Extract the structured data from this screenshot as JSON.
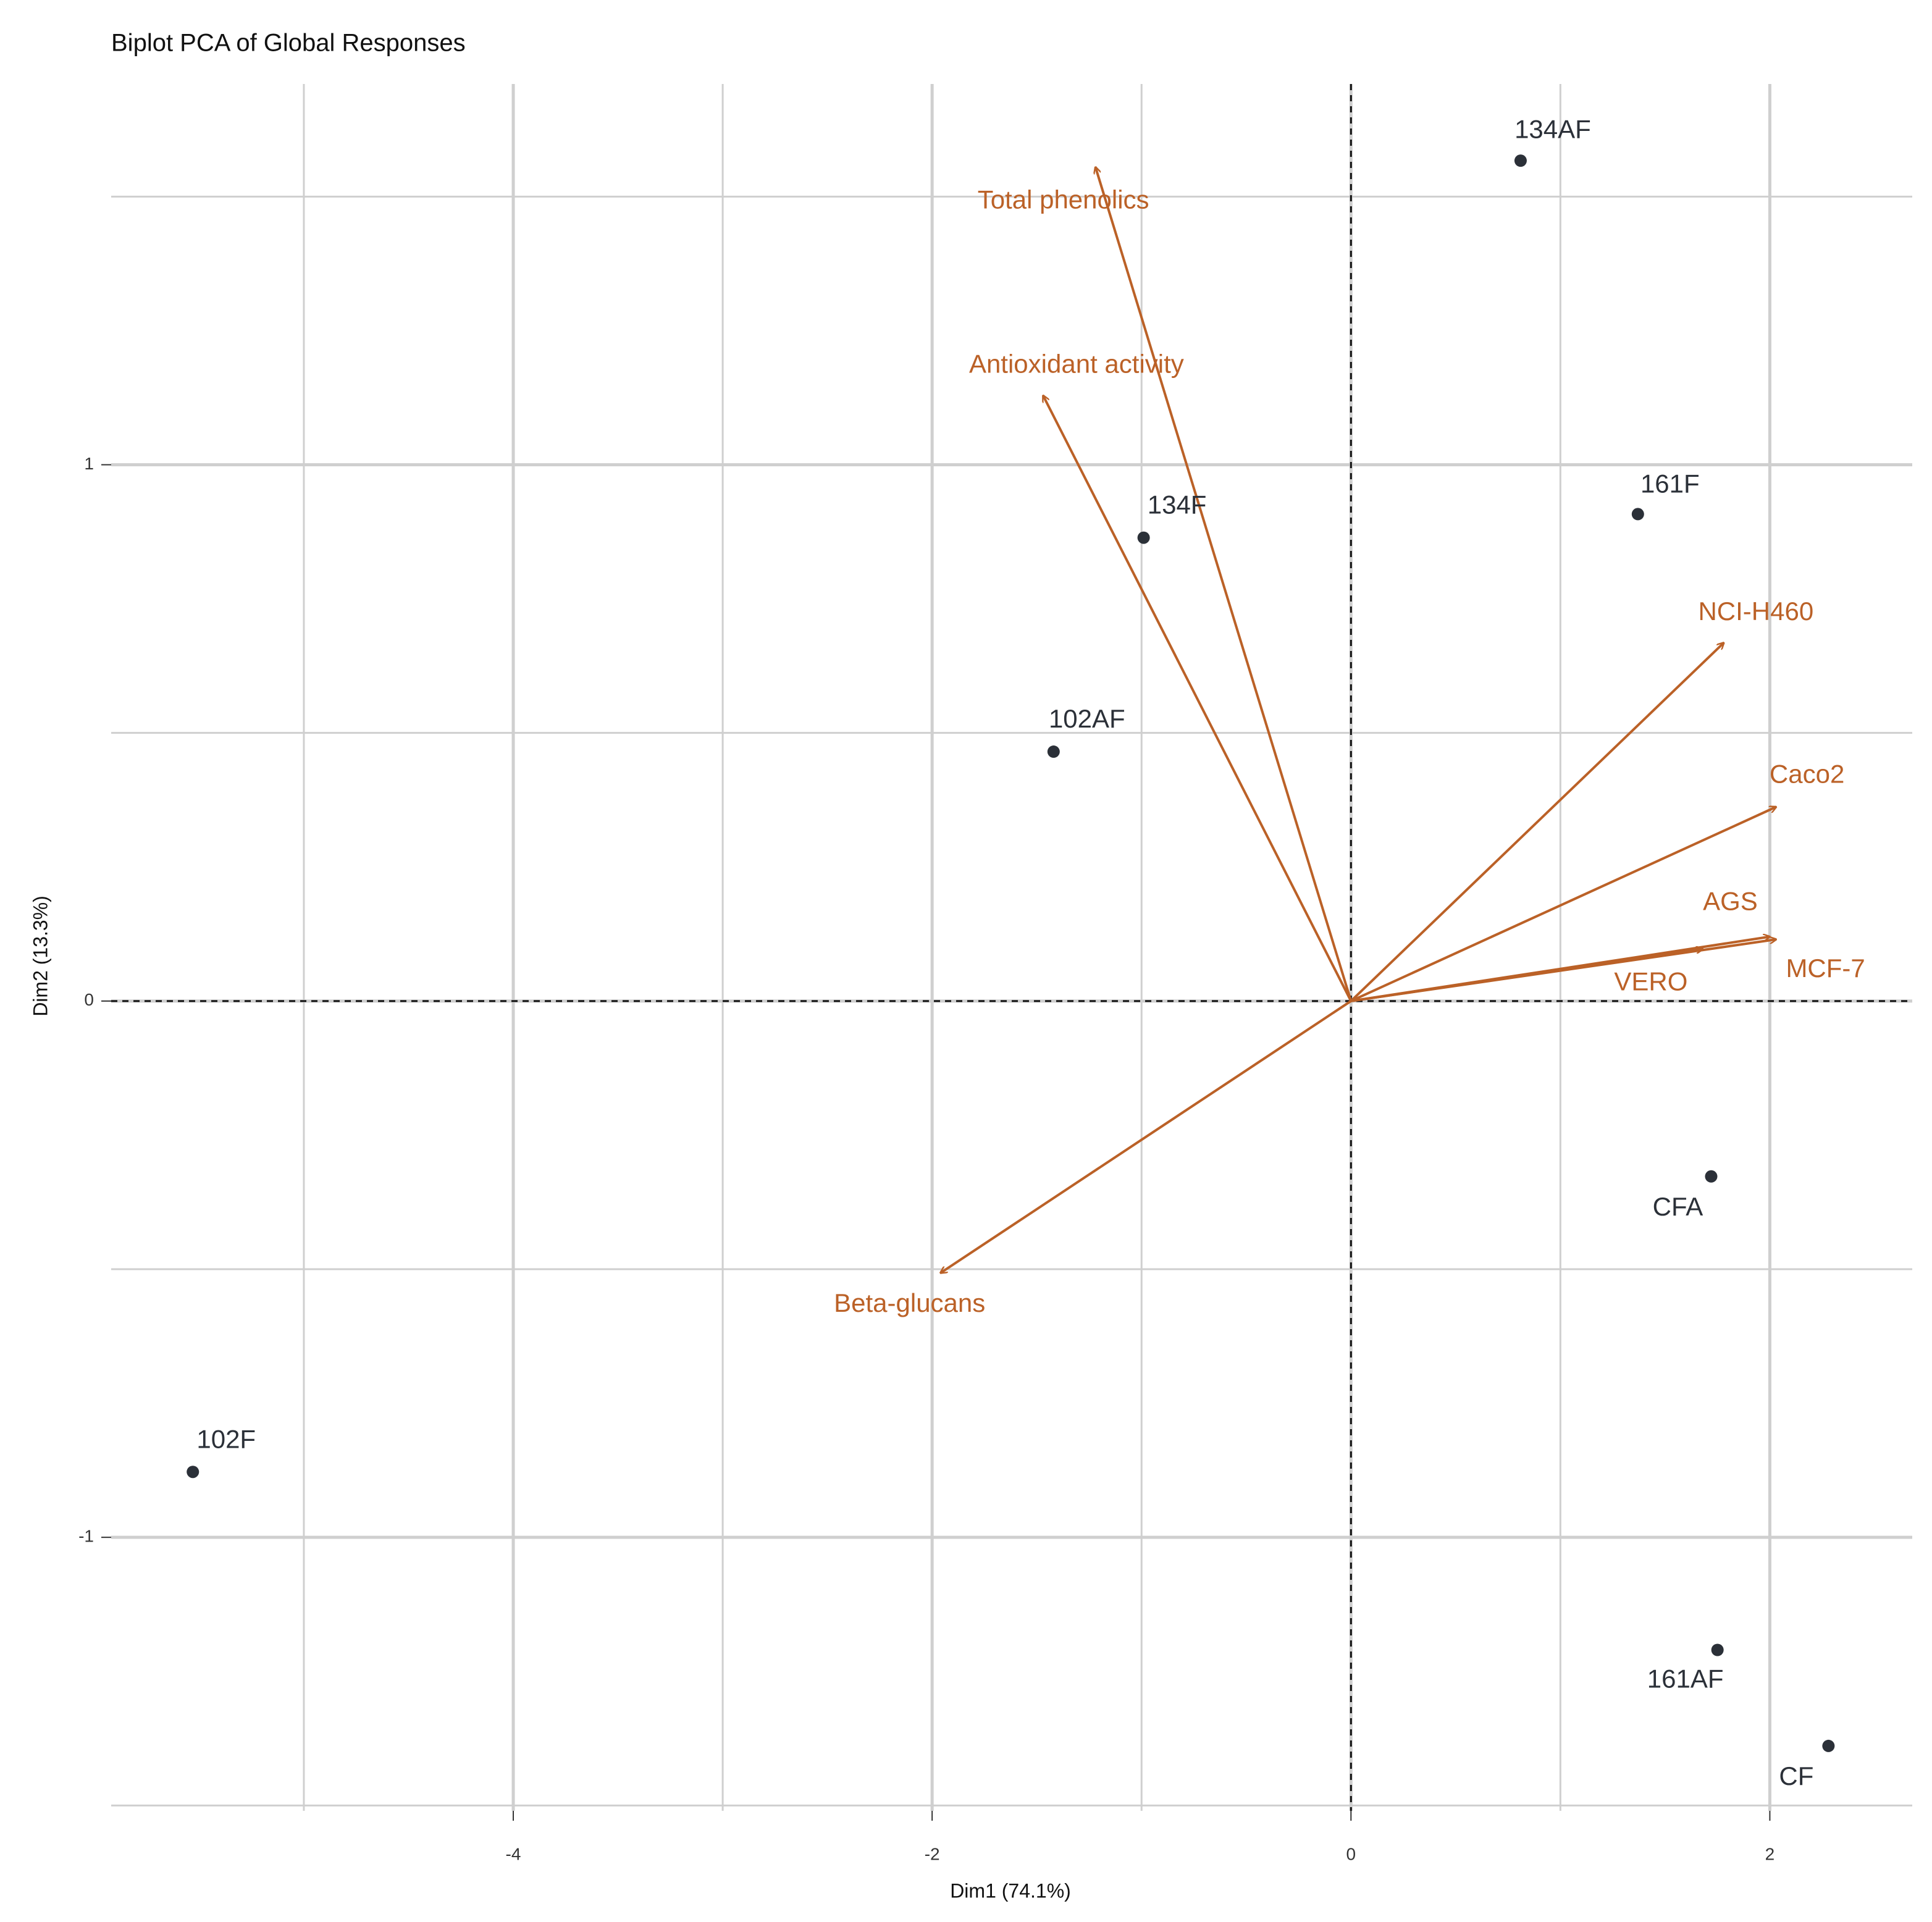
{
  "chart_data": {
    "type": "biplot",
    "title": "Biplot PCA of Global Responses",
    "x_label": "Dim1 (74.1%)",
    "y_label": "Dim2 (13.3%)",
    "xlim": [
      -5.92,
      2.68
    ],
    "ylim": [
      -1.51,
      1.71
    ],
    "xticks": [
      -4,
      -2,
      0,
      2
    ],
    "yticks": [
      -1,
      0,
      1
    ],
    "x_minor_grid": [
      -5,
      -3,
      -1,
      1
    ],
    "y_minor_grid": [
      -1.5,
      -0.5,
      0.5,
      1.5
    ],
    "grid": true,
    "individuals": {
      "color": "#2b3038",
      "labels": [
        "134AF",
        "161F",
        "134F",
        "102AF",
        "CFA",
        "102F",
        "161AF",
        "CF"
      ],
      "x": [
        0.81,
        1.37,
        -0.99,
        -1.42,
        1.72,
        -5.53,
        1.75,
        2.28
      ],
      "y": [
        1.567,
        0.908,
        0.864,
        0.465,
        -0.327,
        -0.878,
        -1.21,
        -1.389
      ]
    },
    "variables": {
      "color": "#bb6127",
      "labels": [
        "Total phenolics",
        "Antioxidant activity",
        "NCI-H460",
        "Caco2",
        "AGS",
        "MCF-7",
        "VERO",
        "Beta-glucans"
      ],
      "x": [
        -1.22,
        -1.47,
        1.78,
        2.03,
        2.0,
        2.03,
        1.68,
        -1.96
      ],
      "y": [
        1.555,
        1.129,
        0.668,
        0.362,
        0.12,
        0.115,
        0.097,
        -0.507
      ]
    }
  }
}
